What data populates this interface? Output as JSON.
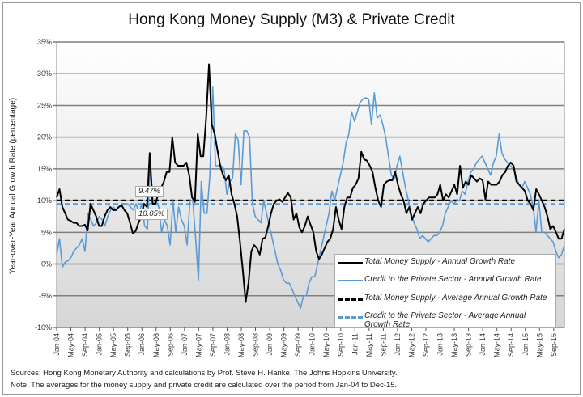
{
  "chart_data": {
    "type": "line",
    "title": "Hong Kong Money Supply (M3) & Private Credit",
    "xlabel": "",
    "ylabel": "Year-over-Year Annual Growth Rate (percentage)",
    "ylim": [
      -10,
      35
    ],
    "yticks": [
      "-10%",
      "-5%",
      "0%",
      "5%",
      "10%",
      "15%",
      "20%",
      "25%",
      "30%",
      "35%"
    ],
    "ytick_values": [
      -10,
      -5,
      0,
      5,
      10,
      15,
      20,
      25,
      30,
      35
    ],
    "grid": true,
    "x_start": "Jan-04",
    "x_end": "Dec-15",
    "xticks": [
      "Jan-04",
      "May-04",
      "Sep-04",
      "Jan-05",
      "May-05",
      "Sep-05",
      "Jan-06",
      "May-06",
      "Sep-06",
      "Jan-07",
      "May-07",
      "Sep-07",
      "Jan-08",
      "May-08",
      "Sep-08",
      "Jan-09",
      "May-09",
      "Sep-09",
      "Jan-10",
      "May-10",
      "Sep-10",
      "Jan-11",
      "May-11",
      "Sep-11",
      "Jan-12",
      "May-12",
      "Sep-12",
      "Jan-13",
      "May-13",
      "Sep-13",
      "Jan-14",
      "May-14",
      "Sep-14",
      "Jan-15",
      "May-15",
      "Sep-15"
    ],
    "legend_position": "bottom-right",
    "series": [
      {
        "name": "Total Money Supply - Annual Growth Rate",
        "color": "#000000",
        "style": "solid",
        "values": [
          10.5,
          11.8,
          9,
          8,
          7,
          6.8,
          6.5,
          6.5,
          6,
          6,
          6.2,
          5.3,
          9.5,
          8.5,
          7.5,
          6,
          6,
          7.5,
          8.5,
          9,
          8.5,
          8.5,
          9,
          9.3,
          8.5,
          8,
          6.5,
          4.8,
          5.2,
          6.5,
          7.5,
          9.5,
          9,
          17.5,
          9.5,
          9.5,
          11,
          12,
          13,
          14.5,
          14.5,
          20,
          16,
          15.5,
          15.5,
          15.5,
          16,
          14,
          10.5,
          9.8,
          20.5,
          17,
          17,
          23,
          31.5,
          22,
          20.5,
          18,
          15.5,
          14,
          13.2,
          14,
          11,
          9.5,
          7.5,
          3.5,
          -1,
          -6,
          -3,
          2,
          3,
          2.5,
          1.5,
          4,
          4.2,
          6,
          8,
          9.5,
          10,
          10.2,
          9.8,
          10.5,
          11.2,
          10.5,
          7,
          8,
          5.8,
          5,
          6,
          7.5,
          6.2,
          5,
          2,
          0.8,
          1.5,
          2.5,
          3.5,
          4,
          5.5,
          9,
          7,
          5.5,
          9,
          10.5,
          10.5,
          12,
          12.5,
          13.5,
          17.7,
          16.5,
          16.3,
          15.5,
          14.5,
          12,
          10,
          9,
          12.5,
          13,
          13.2,
          13.2,
          14.5,
          12.5,
          11,
          10,
          8,
          9,
          7,
          8,
          9,
          8,
          9.5,
          10,
          10.5,
          10.5,
          10.5,
          11,
          12.5,
          10,
          11,
          10.5,
          11.5,
          12.5,
          11,
          15.5,
          12,
          13,
          12.5,
          14,
          13.5,
          13,
          13.5,
          13.2,
          10.2,
          13,
          12.5,
          12.5,
          12.5,
          13,
          14,
          14.5,
          15.5,
          16,
          15.5,
          13,
          12.5,
          12,
          11.5,
          10,
          9.5,
          8.5,
          11.8,
          11,
          10,
          9,
          7.5,
          5.5,
          6,
          5,
          4,
          4,
          5.5
        ]
      },
      {
        "name": "Credit to the Private Sector - Annual Growth Rate",
        "color": "#5b9bd5",
        "style": "solid",
        "values": [
          1.5,
          4,
          -0.5,
          0.3,
          0.5,
          1,
          2,
          2.5,
          3,
          4,
          2,
          8,
          7,
          6,
          6.5,
          7.5,
          7,
          6,
          7.5,
          8.5,
          9,
          8.5,
          9,
          9.5,
          9.5,
          9.5,
          9,
          8.5,
          9.5,
          8,
          9.5,
          6,
          5.5,
          16,
          9.5,
          10,
          9,
          5,
          7,
          6,
          3,
          10,
          5,
          9,
          7,
          6,
          3,
          10,
          10,
          4,
          -2.5,
          13,
          8,
          8,
          14,
          28,
          15.5,
          15.5,
          15.5,
          15,
          11,
          13,
          13.5,
          20.5,
          19.5,
          12.5,
          21,
          21,
          20,
          9.5,
          7.5,
          7,
          6.5,
          10,
          8,
          6,
          4,
          2,
          0,
          -1,
          -2.5,
          -3,
          -3,
          -4,
          -5,
          -6,
          -7,
          -5,
          -5,
          -3,
          -2,
          -2,
          0,
          2,
          4,
          6,
          8,
          11.5,
          10,
          12,
          14,
          16,
          19,
          20.5,
          24,
          22.5,
          24,
          25.5,
          26,
          26.2,
          26,
          22,
          27,
          23,
          23.5,
          22,
          20,
          17,
          14,
          13.5,
          15.5,
          17,
          14.5,
          12,
          10,
          8,
          6.5,
          5.5,
          4,
          4.5,
          4,
          3.5,
          4,
          4.5,
          4.5,
          5,
          6,
          8,
          9,
          10,
          9.5,
          10,
          10,
          11.5,
          11,
          13,
          14.5,
          15,
          16,
          16.5,
          17,
          16,
          15,
          14,
          16,
          17,
          20.5,
          17.5,
          16.5,
          16,
          15.5,
          15,
          13.8,
          12.5,
          12,
          13,
          12,
          11,
          9,
          5,
          10,
          5,
          5,
          4.5,
          4,
          3.5,
          2,
          1,
          1.5,
          3
        ]
      }
    ],
    "averages": [
      {
        "name": "Total Money Supply - Average Annual Growth Rate",
        "value": 10.05,
        "label": "10.05%",
        "color": "#000000",
        "style": "dashed"
      },
      {
        "name": "Credit to the Private Sector - Average Annual Growth Rate",
        "value": 9.47,
        "label": "9.47%",
        "color": "#5b9bd5",
        "style": "dashed"
      }
    ]
  },
  "legend": {
    "items": [
      {
        "label": "Total Money Supply - Annual Growth Rate",
        "color": "#000000",
        "style": "solid"
      },
      {
        "label": "Credit to the Private Sector - Annual Growth Rate",
        "color": "#5b9bd5",
        "style": "solid"
      },
      {
        "label": "Total Money Supply - Average Annual Growth Rate",
        "color": "#000000",
        "style": "dashed"
      },
      {
        "label": "Credit to the Private Sector - Average Annual Growth Rate",
        "color": "#5b9bd5",
        "style": "dashed"
      }
    ]
  },
  "footer": {
    "sources": "Sources: Hong Kong Monetary Authority and calculations by Prof. Steve H. Hanke, The Johns Hopkins University.",
    "note": "Note: The averages for the money supply and private credit are calculated over the period from Jan-04 to Dec-15."
  }
}
